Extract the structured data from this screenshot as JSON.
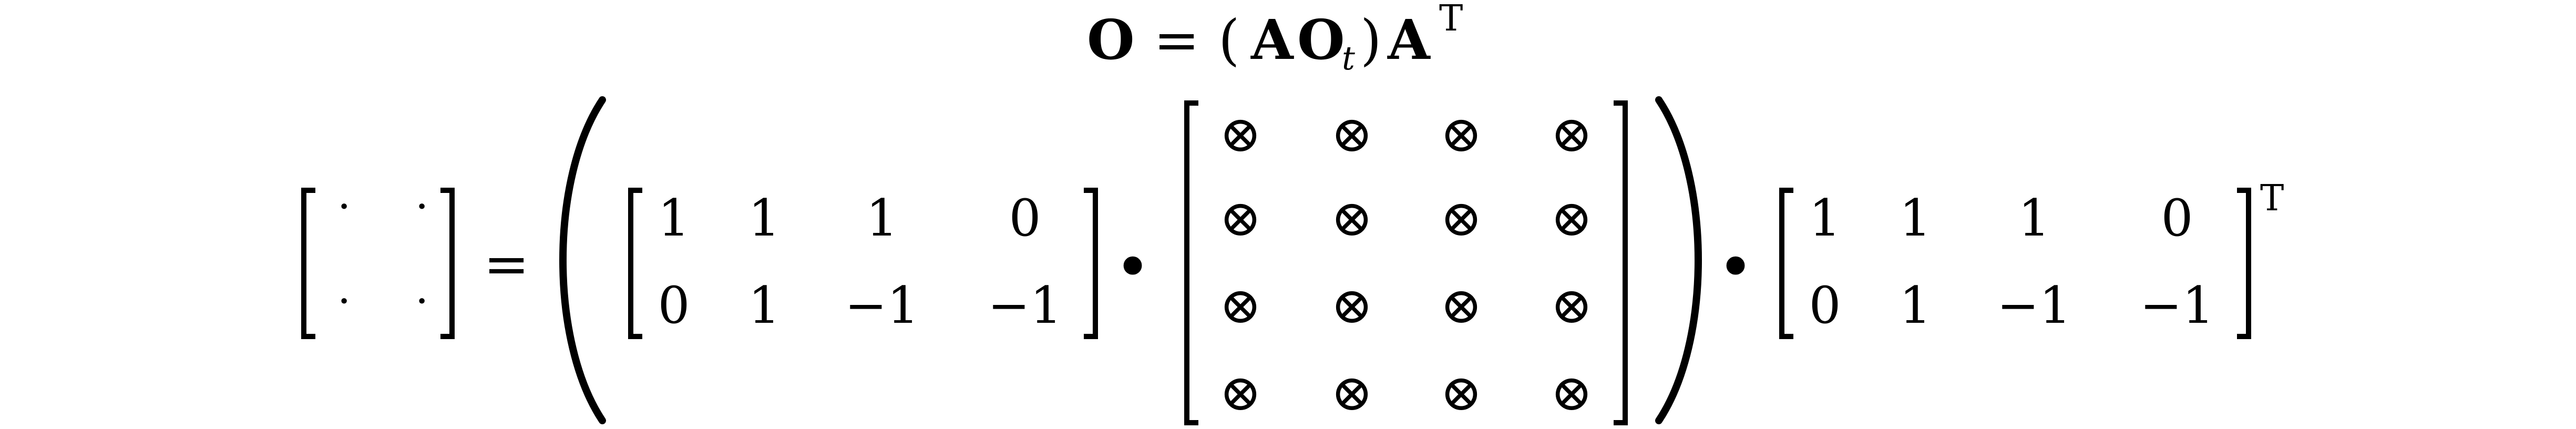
{
  "equation": {
    "title_parts": {
      "lhs": "O",
      "equals": "=",
      "lparen": "(",
      "a1": "A",
      "o": "O",
      "sub_t": "t",
      "rparen": ")",
      "a2": "A",
      "transpose": "T"
    },
    "result_matrix": [
      [
        "·",
        "·"
      ],
      [
        "·",
        "·"
      ]
    ],
    "equals_sign": "=",
    "matrix_a": [
      [
        "1",
        "1",
        "1",
        "0"
      ],
      [
        "0",
        "1",
        "−1",
        "−1"
      ]
    ],
    "dot_operator": "•",
    "tile_matrix": [
      [
        "⊗",
        "⊗",
        "⊗",
        "⊗"
      ],
      [
        "⊗",
        "⊗",
        "⊗",
        "⊗"
      ],
      [
        "⊗",
        "⊗",
        "⊗",
        "⊗"
      ],
      [
        "⊗",
        "⊗",
        "⊗",
        "⊗"
      ]
    ],
    "matrix_a_transposed": [
      [
        "1",
        "1",
        "1",
        "0"
      ],
      [
        "0",
        "1",
        "−1",
        "−1"
      ]
    ],
    "transpose_mark": "T"
  }
}
